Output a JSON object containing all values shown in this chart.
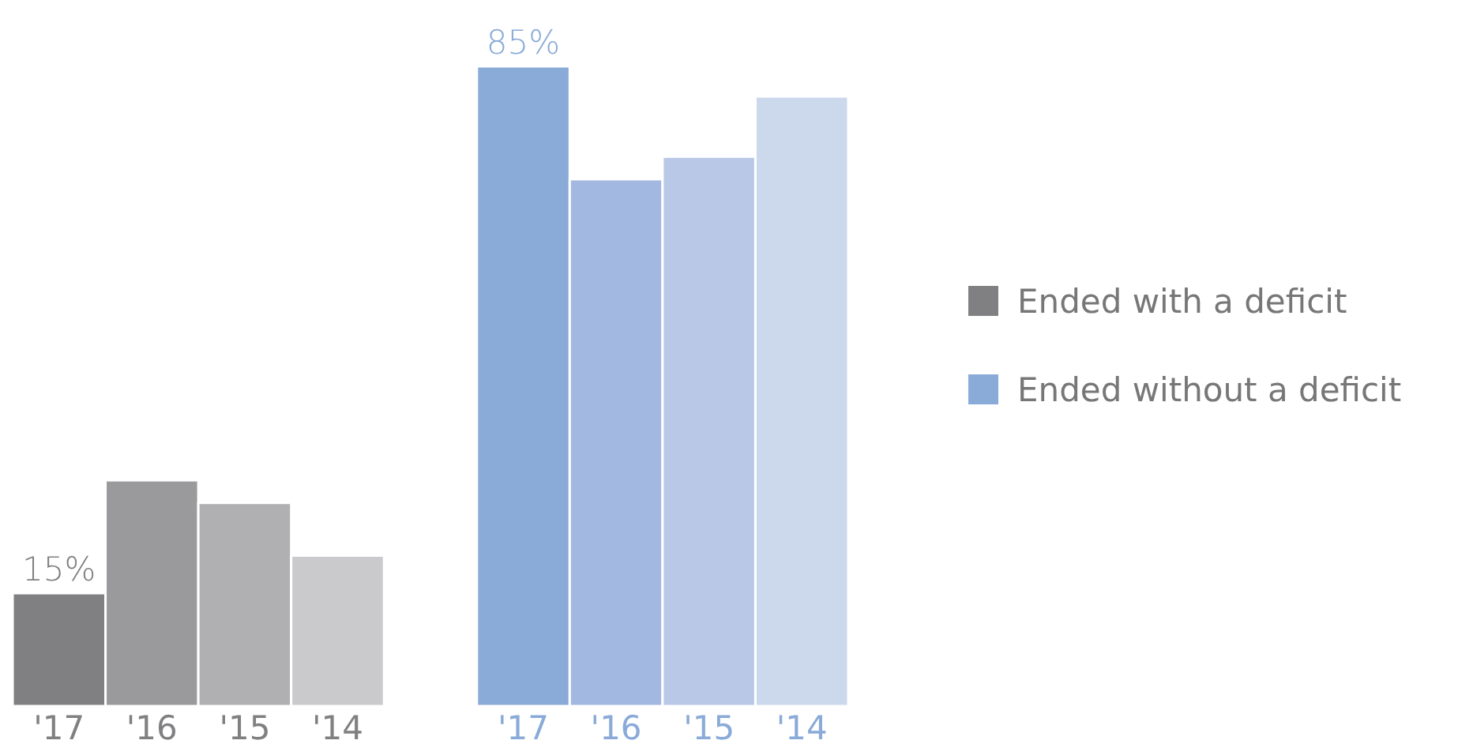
{
  "chart_data": {
    "type": "bar",
    "categories": [
      "'17",
      "'16",
      "'15",
      "'14",
      null,
      "'17",
      "'16",
      "'15",
      "'14"
    ],
    "series": [
      {
        "name": "Ended with a deficit",
        "color": "#808083",
        "colors": [
          "#808083",
          "#9a9a9d",
          "#b0b0b3",
          "#cacacc",
          null,
          null,
          null,
          null,
          null
        ],
        "values": [
          15,
          30,
          27,
          20,
          null,
          null,
          null,
          null,
          null
        ],
        "value_labels": [
          "15%",
          null,
          null,
          null,
          null,
          null,
          null,
          null,
          null
        ]
      },
      {
        "name": "Ended without a deficit",
        "color": "#8aaad8",
        "colors": [
          null,
          null,
          null,
          null,
          null,
          "#8aaad8",
          "#a3b8e0",
          "#b9c8e7",
          "#ccd9ec"
        ],
        "values": [
          null,
          null,
          null,
          null,
          null,
          85,
          70,
          73,
          81
        ],
        "value_labels": [
          null,
          null,
          null,
          null,
          null,
          "85%",
          null,
          null,
          null
        ]
      }
    ],
    "grid": false,
    "legend": "right"
  }
}
